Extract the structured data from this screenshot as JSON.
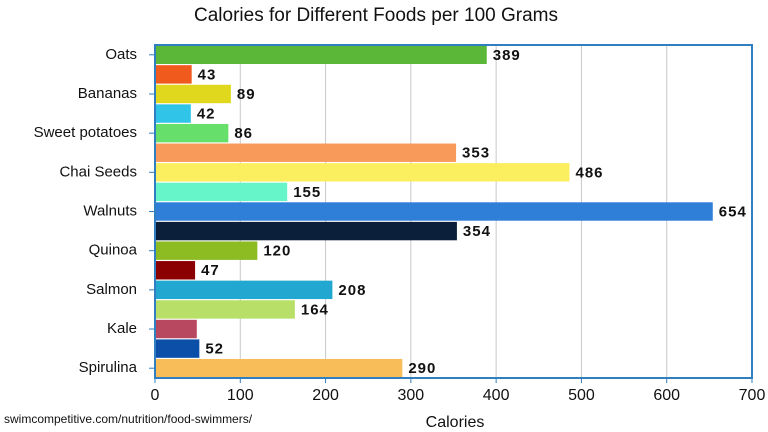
{
  "chart_data": {
    "type": "bar",
    "orientation": "horizontal",
    "title": "Calories for Different Foods per 100 Grams",
    "x_label": "Calories",
    "source": "swimcompetitive.com/nutrition/food-swimmers/",
    "categories": [
      "Oats",
      null,
      "Bananas",
      null,
      "Sweet potatoes",
      null,
      "Chai Seeds",
      null,
      "Walnuts",
      null,
      "Quinoa",
      null,
      "Salmon",
      null,
      "Kale",
      null,
      "Spirulina"
    ],
    "values": [
      389,
      43,
      89,
      42,
      86,
      353,
      486,
      155,
      654,
      354,
      120,
      47,
      208,
      164,
      49,
      52,
      290
    ],
    "value_labels": [
      "389",
      "43",
      "89",
      "42",
      "86",
      "353",
      "486",
      "155",
      "654",
      "354",
      "120",
      "47",
      "208",
      "164",
      null,
      "52",
      "290"
    ],
    "colors": [
      "#5ab738",
      "#f05a1c",
      "#e0d81c",
      "#2fc4e8",
      "#66e06a",
      "#f89a5a",
      "#fbef60",
      "#66f5c8",
      "#2f7fd8",
      "#0c1f3a",
      "#8cbb22",
      "#8b0000",
      "#22a8d0",
      "#b8e068",
      "#b84860",
      "#0c4fa8",
      "#f8bc58"
    ],
    "xlim": [
      0,
      700
    ],
    "xticks": [
      0,
      100,
      200,
      300,
      400,
      500,
      600,
      700
    ],
    "grid": true
  }
}
